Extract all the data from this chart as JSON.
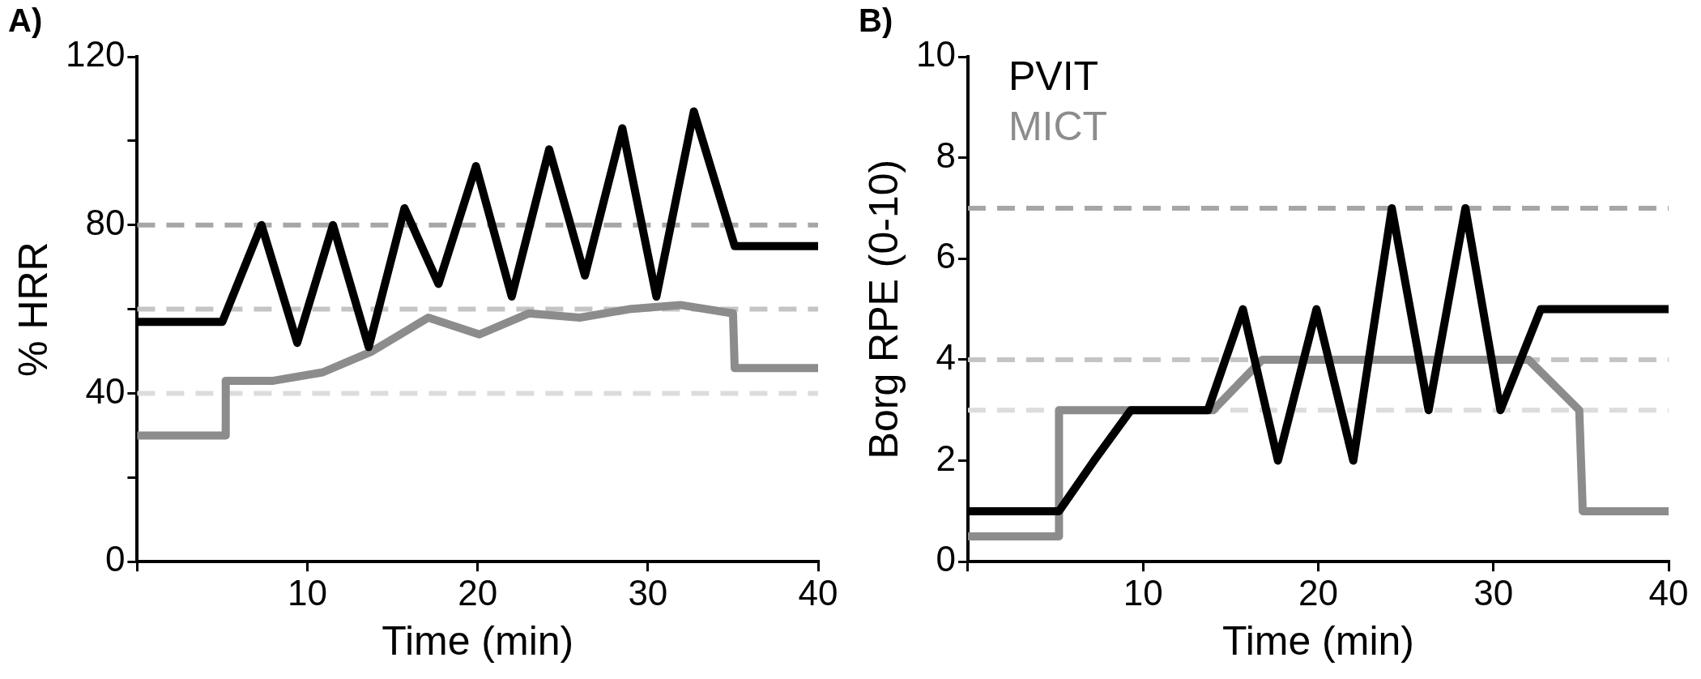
{
  "chart_data": [
    {
      "type": "line",
      "title": "A)",
      "xlabel": "Time (min)",
      "ylabel": "% HRR",
      "xlim": [
        0,
        40
      ],
      "xticks": [
        {
          "value": 0,
          "label": null
        },
        10,
        20,
        30,
        40
      ],
      "ylim": [
        0,
        120
      ],
      "yticks": [
        0,
        {
          "value": 20,
          "label": null
        },
        40,
        {
          "value": 60,
          "label": null
        },
        80,
        {
          "value": 100,
          "label": null
        },
        120
      ],
      "ref_lines": [
        {
          "axis": "y",
          "value": 80,
          "color": "#a6a6a6",
          "line_style": "dashed"
        },
        {
          "axis": "y",
          "value": 60,
          "color": "#c4c4c4",
          "line_style": "dashed"
        },
        {
          "axis": "y",
          "value": 40,
          "color": "#dcdcdc",
          "line_style": "dashed"
        }
      ],
      "series": [
        {
          "color": "#000000",
          "x": [
            0,
            5,
            7.3,
            9.4,
            11.5,
            13.6,
            15.7,
            17.7,
            19.9,
            22,
            24.2,
            26.3,
            28.5,
            30.5,
            32.7,
            35.1,
            40
          ],
          "values": [
            57,
            57,
            80,
            52,
            80,
            51,
            84,
            66,
            94,
            63,
            98,
            68,
            103,
            63,
            107,
            75,
            75
          ]
        },
        {
          "color": "#8c8c8c",
          "x": [
            0,
            5.2,
            5.2,
            8,
            10.9,
            13.8,
            17.1,
            20.1,
            23,
            26,
            28.9,
            31.9,
            35,
            35.1,
            40
          ],
          "values": [
            30,
            30,
            43,
            43,
            45,
            50,
            58,
            54,
            59,
            58,
            60,
            61,
            59,
            46,
            46
          ]
        }
      ]
    },
    {
      "type": "line",
      "title": "B)",
      "xlabel": "Time (min)",
      "ylabel": "Borg RPE (0-10)",
      "xlim": [
        0,
        40
      ],
      "xticks": [
        {
          "value": 0,
          "label": null
        },
        10,
        20,
        30,
        40
      ],
      "ylim": [
        0,
        10
      ],
      "yticks": [
        0,
        2,
        4,
        6,
        8,
        10
      ],
      "legend": "top left",
      "ref_lines": [
        {
          "axis": "y",
          "value": 7,
          "color": "#a6a6a6",
          "line_style": "dashed"
        },
        {
          "axis": "y",
          "value": 4,
          "color": "#c4c4c4",
          "line_style": "dashed"
        },
        {
          "axis": "y",
          "value": 3,
          "color": "#dcdcdc",
          "line_style": "dashed"
        }
      ],
      "series": [
        {
          "name": "PVIT",
          "color": "#000000",
          "x": [
            0,
            5.2,
            7.2,
            9.3,
            11.1,
            13.7,
            15.7,
            17.7,
            19.9,
            22,
            24.2,
            26.3,
            28.4,
            30.4,
            32.7,
            35,
            40
          ],
          "values": [
            1,
            1,
            2,
            3,
            3,
            3,
            5,
            2,
            5,
            2,
            7,
            3,
            7,
            3,
            5,
            5,
            5
          ]
        },
        {
          "name": "MICT",
          "color": "#8c8c8c",
          "x": [
            0,
            5.2,
            5.2,
            14,
            16.8,
            32,
            34.9,
            35.1,
            40
          ],
          "values": [
            0.5,
            0.5,
            3,
            3,
            4,
            4,
            3,
            1,
            1
          ]
        }
      ]
    }
  ]
}
